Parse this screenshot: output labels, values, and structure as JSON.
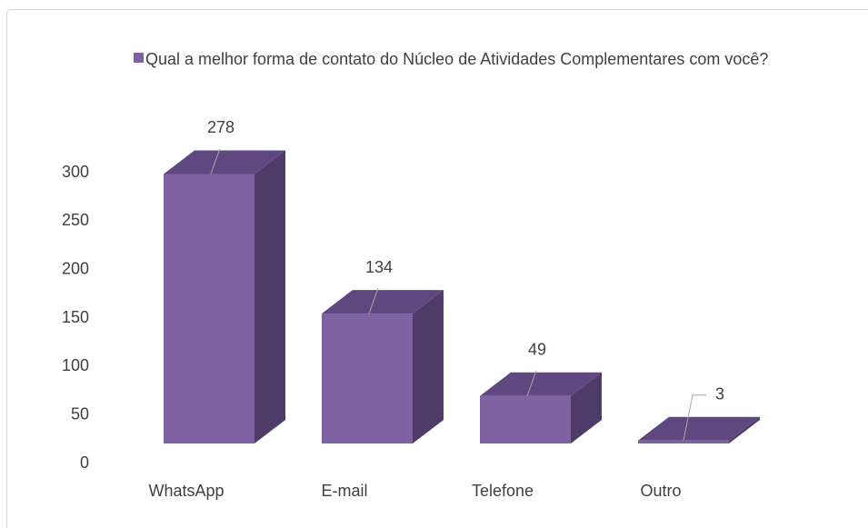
{
  "chart_data": {
    "type": "bar3d",
    "categories": [
      "WhatsApp",
      "E-mail",
      "Telefone",
      "Outro"
    ],
    "series": [
      {
        "name": "Qual a melhor forma de contato do Núcleo de Atividades Complementares com você?",
        "color": "#7e62a1",
        "values": [
          278,
          134,
          49,
          3
        ]
      }
    ],
    "ylim": [
      0,
      300
    ],
    "yticks": [
      0,
      50,
      100,
      150,
      200,
      250,
      300
    ],
    "legend": "top"
  }
}
